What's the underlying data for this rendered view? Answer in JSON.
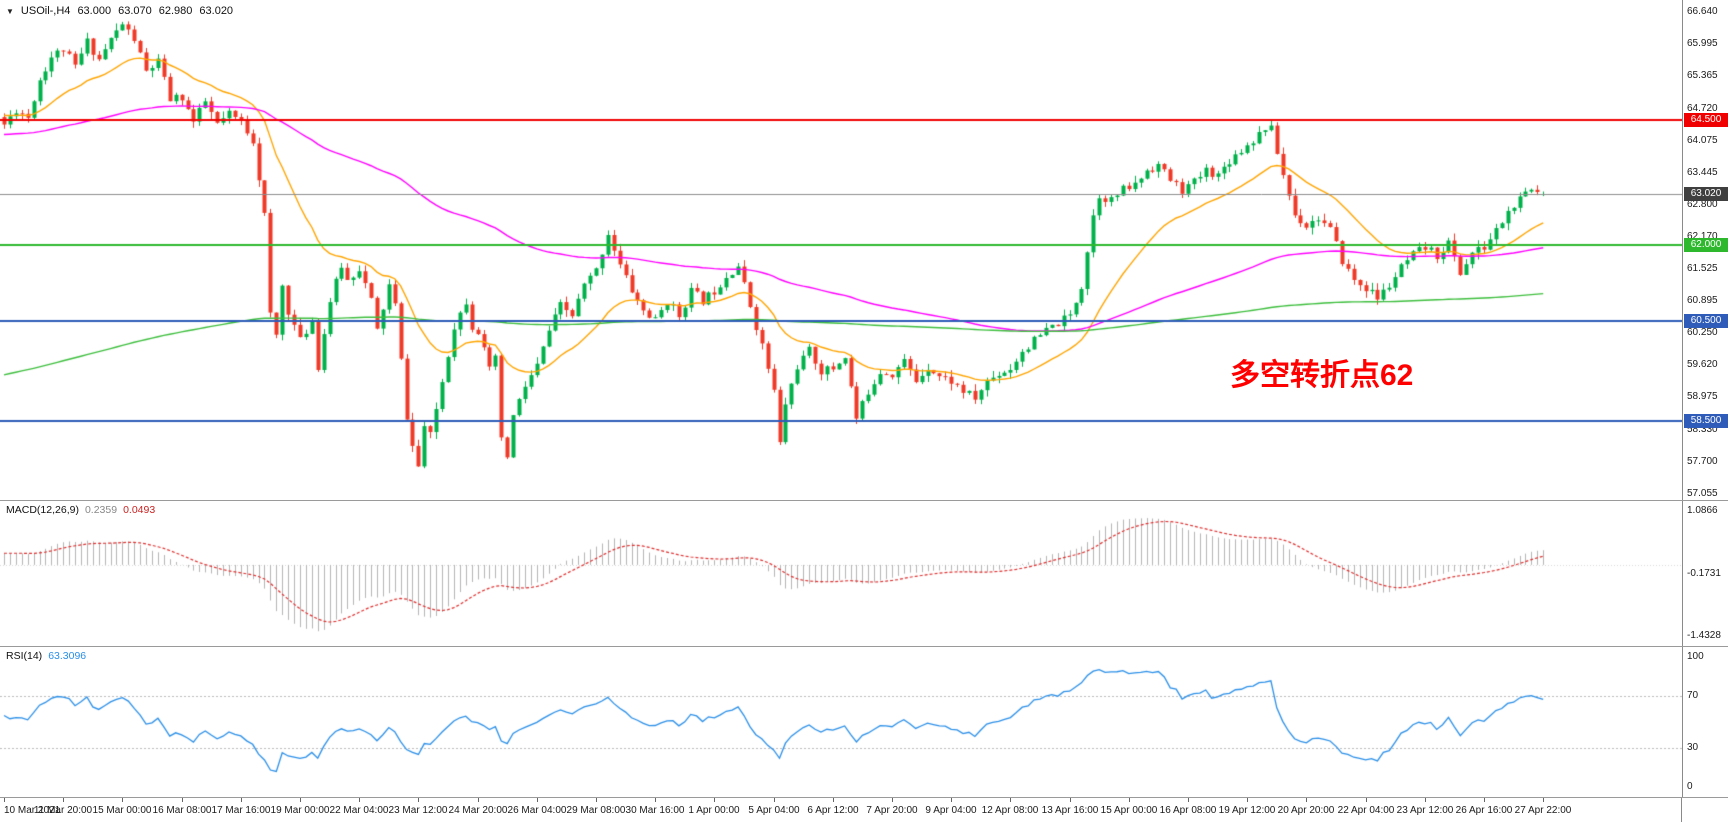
{
  "icons": {
    "symbol_dropdown": "▼"
  },
  "header": {
    "symbol": "USOil-,H4",
    "open": "63.000",
    "high": "63.070",
    "low": "62.980",
    "close": "63.020"
  },
  "main": {
    "annotation": "多空转折点62",
    "price_axis_labels": [
      "66.640",
      "65.995",
      "65.365",
      "64.720",
      "64.075",
      "63.445",
      "62.800",
      "62.170",
      "61.525",
      "60.895",
      "60.250",
      "59.620",
      "58.975",
      "58.330",
      "57.700",
      "57.055"
    ]
  },
  "macd": {
    "label": "MACD(12,26,9)",
    "value_main": "0.2359",
    "value_signal": "0.0493",
    "axis_labels": [
      {
        "text": "1.0866",
        "value": 1.0866
      },
      {
        "text": "-0.1731",
        "value": -0.1731
      },
      {
        "text": "-1.4328",
        "value": -1.4328
      }
    ]
  },
  "rsi": {
    "label": "RSI(14)",
    "value": "63.3096",
    "axis_labels": [
      {
        "text": "100",
        "value": 100
      },
      {
        "text": "70",
        "value": 70
      },
      {
        "text": "30",
        "value": 30
      },
      {
        "text": "0",
        "value": 0
      }
    ]
  },
  "time_axis": [
    "10 Mar 2021",
    "11 Mar 20:00",
    "15 Mar 00:00",
    "16 Mar 08:00",
    "17 Mar 16:00",
    "19 Mar 00:00",
    "22 Mar 04:00",
    "23 Mar 12:00",
    "24 Mar 20:00",
    "26 Mar 04:00",
    "29 Mar 08:00",
    "30 Mar 16:00",
    "1 Apr 00:00",
    "5 Apr 04:00",
    "6 Apr 12:00",
    "7 Apr 20:00",
    "9 Apr 04:00",
    "12 Apr 08:00",
    "13 Apr 16:00",
    "15 Apr 00:00",
    "16 Apr 08:00",
    "19 Apr 12:00",
    "20 Apr 20:00",
    "22 Apr 04:00",
    "23 Apr 12:00",
    "26 Apr 16:00",
    "27 Apr 22:00"
  ],
  "colors": {
    "annotation": "#ff0000",
    "axis_text": "#1a1a1a",
    "panel_border": "#9a9a9a",
    "macd_hist": "#b4b4b4",
    "macd_signal": "#e03030",
    "macd_value_main": "#888888",
    "macd_value_signal": "#cc2222",
    "rsi_line": "#2a8fe8",
    "rsi_value": "#2a8fe8",
    "rsi_levels": "#bbbbbb"
  },
  "chart_data": {
    "type": "candlestick",
    "title": "USOil-,H4",
    "timeframe": "H4",
    "last_ohlc": {
      "open": 63.0,
      "high": 63.07,
      "low": 62.98,
      "close": 63.02
    },
    "price_axis_max": 66.64,
    "price_axis_min": 57.055,
    "bars_total": 261,
    "bar_spacing": 5.92,
    "bars_per_time_label": 10,
    "candle_up_color": "#00b24a",
    "candle_down_color": "#ef3a28",
    "synthesis": {
      "seed": 11,
      "close_jitter": 0.09,
      "wick": 0.14
    },
    "price_path": [
      [
        0,
        64.4
      ],
      [
        2,
        64.7
      ],
      [
        4,
        64.55
      ],
      [
        6,
        65.3
      ],
      [
        8,
        65.75
      ],
      [
        10,
        65.9
      ],
      [
        12,
        65.55
      ],
      [
        14,
        66.05
      ],
      [
        16,
        65.7
      ],
      [
        18,
        66.1
      ],
      [
        20,
        66.4
      ],
      [
        22,
        66.1
      ],
      [
        24,
        65.45
      ],
      [
        26,
        65.65
      ],
      [
        28,
        64.9
      ],
      [
        30,
        64.95
      ],
      [
        32,
        64.45
      ],
      [
        34,
        64.85
      ],
      [
        36,
        64.4
      ],
      [
        38,
        64.6
      ],
      [
        40,
        64.45
      ],
      [
        42,
        64.1
      ],
      [
        44,
        62.6
      ],
      [
        45,
        60.6
      ],
      [
        46,
        60.2
      ],
      [
        47,
        61.2
      ],
      [
        48,
        60.7
      ],
      [
        50,
        60.1
      ],
      [
        52,
        60.5
      ],
      [
        53,
        59.6
      ],
      [
        55,
        60.9
      ],
      [
        57,
        61.6
      ],
      [
        58,
        61.3
      ],
      [
        60,
        61.55
      ],
      [
        62,
        60.9
      ],
      [
        63,
        60.3
      ],
      [
        65,
        61.2
      ],
      [
        66,
        60.8
      ],
      [
        68,
        58.6
      ],
      [
        69,
        58.0
      ],
      [
        70,
        57.6
      ],
      [
        71,
        58.4
      ],
      [
        72,
        58.2
      ],
      [
        74,
        59.3
      ],
      [
        76,
        60.4
      ],
      [
        78,
        60.9
      ],
      [
        79,
        60.4
      ],
      [
        80,
        60.3
      ],
      [
        82,
        59.5
      ],
      [
        83,
        59.8
      ],
      [
        84,
        58.1
      ],
      [
        85,
        57.8
      ],
      [
        86,
        58.6
      ],
      [
        88,
        59.2
      ],
      [
        90,
        59.6
      ],
      [
        92,
        60.3
      ],
      [
        94,
        60.8
      ],
      [
        96,
        60.6
      ],
      [
        98,
        61.2
      ],
      [
        100,
        61.5
      ],
      [
        102,
        62.25
      ],
      [
        104,
        61.6
      ],
      [
        106,
        61.1
      ],
      [
        108,
        60.7
      ],
      [
        110,
        60.5
      ],
      [
        112,
        60.9
      ],
      [
        114,
        60.6
      ],
      [
        116,
        61.1
      ],
      [
        118,
        60.9
      ],
      [
        120,
        61.1
      ],
      [
        122,
        61.4
      ],
      [
        124,
        61.6
      ],
      [
        126,
        60.8
      ],
      [
        128,
        60.0
      ],
      [
        130,
        59.1
      ],
      [
        131,
        58.05
      ],
      [
        132,
        58.85
      ],
      [
        134,
        59.6
      ],
      [
        136,
        59.9
      ],
      [
        138,
        59.5
      ],
      [
        140,
        59.55
      ],
      [
        142,
        59.8
      ],
      [
        144,
        58.55
      ],
      [
        146,
        59.1
      ],
      [
        148,
        59.5
      ],
      [
        150,
        59.45
      ],
      [
        152,
        59.7
      ],
      [
        154,
        59.3
      ],
      [
        156,
        59.6
      ],
      [
        158,
        59.4
      ],
      [
        160,
        59.3
      ],
      [
        162,
        59.1
      ],
      [
        164,
        58.95
      ],
      [
        166,
        59.3
      ],
      [
        168,
        59.45
      ],
      [
        170,
        59.55
      ],
      [
        172,
        59.9
      ],
      [
        174,
        60.1
      ],
      [
        176,
        60.3
      ],
      [
        178,
        60.45
      ],
      [
        180,
        60.6
      ],
      [
        182,
        61.2
      ],
      [
        184,
        62.6
      ],
      [
        185,
        63.0
      ],
      [
        187,
        62.9
      ],
      [
        189,
        63.1
      ],
      [
        191,
        63.2
      ],
      [
        193,
        63.5
      ],
      [
        195,
        63.6
      ],
      [
        197,
        63.3
      ],
      [
        199,
        63.1
      ],
      [
        201,
        63.25
      ],
      [
        203,
        63.5
      ],
      [
        205,
        63.4
      ],
      [
        207,
        63.7
      ],
      [
        209,
        63.9
      ],
      [
        211,
        64.1
      ],
      [
        213,
        64.35
      ],
      [
        214,
        64.3
      ],
      [
        216,
        63.4
      ],
      [
        218,
        62.6
      ],
      [
        220,
        62.4
      ],
      [
        222,
        62.55
      ],
      [
        224,
        62.3
      ],
      [
        226,
        61.7
      ],
      [
        228,
        61.3
      ],
      [
        230,
        61.15
      ],
      [
        232,
        60.95
      ],
      [
        234,
        61.2
      ],
      [
        236,
        61.55
      ],
      [
        238,
        61.8
      ],
      [
        240,
        61.95
      ],
      [
        242,
        61.8
      ],
      [
        244,
        62.05
      ],
      [
        246,
        61.45
      ],
      [
        248,
        61.85
      ],
      [
        250,
        61.95
      ],
      [
        252,
        62.3
      ],
      [
        254,
        62.65
      ],
      [
        256,
        62.9
      ],
      [
        258,
        63.1
      ],
      [
        260,
        63.02
      ]
    ],
    "moving_averages": [
      {
        "name": "fast-ma-orange",
        "color": "#ffa500",
        "alpha": 0.09,
        "seed": 64.6
      },
      {
        "name": "medium-ma-magenta",
        "color": "#ff00ff",
        "alpha": 0.018,
        "seed": 64.2
      },
      {
        "name": "slow-ma-green",
        "color": "#3dbe3d",
        "alpha": 0.005,
        "seed": 59.4
      }
    ],
    "horizontal_lines": [
      {
        "price": 64.5,
        "label": "64.500",
        "color": "#f00000",
        "width": 2
      },
      {
        "price": 62.0,
        "label": "62.000",
        "color": "#2db82d",
        "width": 2
      },
      {
        "price": 60.5,
        "label": "60.500",
        "color": "#2e5cb8",
        "width": 2
      },
      {
        "price": 58.5,
        "label": "58.500",
        "color": "#2e5cb8",
        "width": 2
      }
    ],
    "current_price": {
      "value": 63.02,
      "label": "63.020",
      "line_color": "#8c8c8c",
      "badge_bg": "#3f3f3f"
    },
    "macd": {
      "fast": 12,
      "slow": 26,
      "signal": 9,
      "scale_max": 1.0866,
      "scale_min": -1.4328,
      "display_main": 0.2359,
      "display_signal": 0.0493
    },
    "rsi": {
      "period": 14,
      "display_value": 63.3096,
      "levels": [
        70,
        30
      ],
      "scale": [
        0,
        100
      ]
    }
  }
}
